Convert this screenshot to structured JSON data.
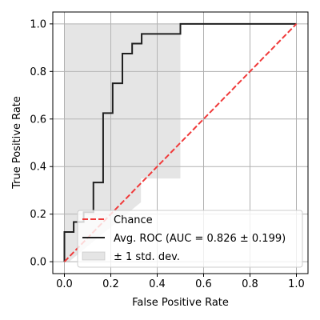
{
  "chart_data": {
    "type": "line",
    "xlabel": "False Positive Rate",
    "ylabel": "True Positive Rate",
    "xlim": [
      -0.05,
      1.05
    ],
    "ylim": [
      -0.05,
      1.05
    ],
    "xticks": [
      "0.0",
      "0.2",
      "0.4",
      "0.6",
      "0.8",
      "1.0"
    ],
    "yticks": [
      "0.0",
      "0.2",
      "0.4",
      "0.6",
      "0.8",
      "1.0"
    ],
    "grid": true,
    "legend_position": "lower-right",
    "series": [
      {
        "name": "Chance",
        "style": "dashed",
        "color": "#f03a3a",
        "x": [
          0,
          1
        ],
        "y": [
          0,
          1
        ]
      },
      {
        "name": "Avg. ROC (AUC = 0.826 ± 0.199)",
        "style": "solid",
        "color": "#202020",
        "x": [
          0,
          0,
          0.04,
          0.04,
          0.083,
          0.083,
          0.125,
          0.125,
          0.167,
          0.167,
          0.208,
          0.208,
          0.25,
          0.25,
          0.292,
          0.292,
          0.333,
          0.333,
          0.5,
          0.5,
          1.0
        ],
        "y": [
          0,
          0.125,
          0.125,
          0.167,
          0.167,
          0.208,
          0.208,
          0.333,
          0.333,
          0.625,
          0.625,
          0.75,
          0.75,
          0.875,
          0.875,
          0.917,
          0.917,
          0.958,
          0.958,
          1.0,
          1.0
        ]
      }
    ],
    "band": {
      "name": "± 1 std. dev.",
      "color": "#bdbdbd",
      "opacity": 0.4,
      "upper": {
        "x": [
          0,
          0.5,
          0.5,
          1.0
        ],
        "y": [
          1.0,
          1.0,
          1.0,
          1.0
        ]
      },
      "lower": {
        "x": [
          0,
          0.02,
          0.33,
          0.33,
          0.5,
          0.5,
          1.0
        ],
        "y": [
          0,
          0,
          0.25,
          0.35,
          0.35,
          1.0,
          1.0
        ]
      }
    }
  }
}
